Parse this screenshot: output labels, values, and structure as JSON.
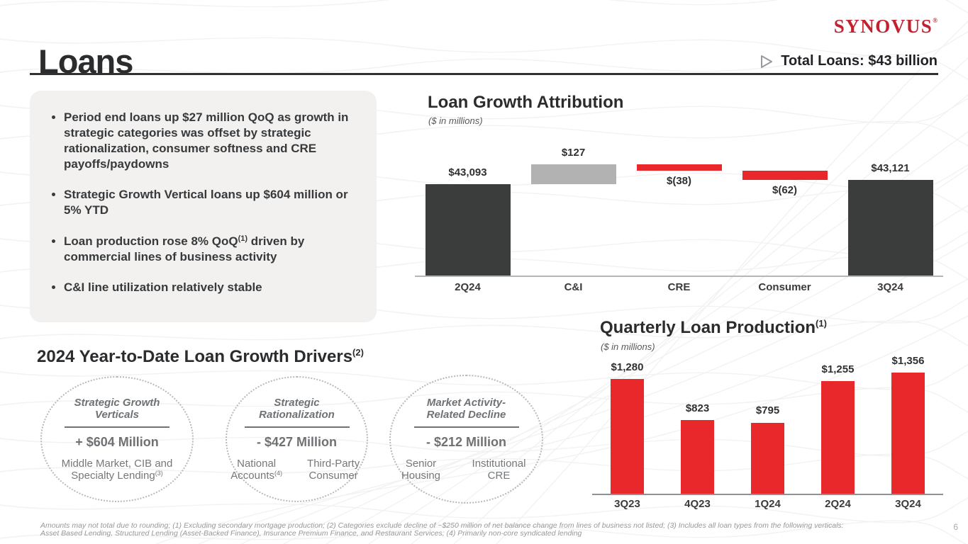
{
  "colors": {
    "accent_red": "#e8282a",
    "bar_dark": "#3b3d3c",
    "bar_gray": "#b1b2b1",
    "logo_red": "#c32130",
    "highlight_box_bg": "#f2f1f0"
  },
  "header": {
    "title": "Loans",
    "logo_text": "SYNOVUS",
    "logo_registered": "®",
    "total_loans": "Total Loans: $43 billion"
  },
  "highlights": {
    "bullets": [
      {
        "text": "Period end loans up $27 million QoQ as growth in strategic categories was offset by strategic rationalization, consumer softness and CRE payoffs/paydowns"
      },
      {
        "text": "Strategic Growth Vertical loans up $604 million or 5% YTD"
      },
      {
        "pre": "Loan production rose 8% QoQ",
        "sup": "(1)",
        "post": " driven by commercial lines of business activity"
      },
      {
        "text": "C&I line utilization relatively stable"
      }
    ]
  },
  "chart_data": [
    {
      "id": "loan_growth_attribution",
      "type": "waterfall",
      "title": "Loan Growth Attribution",
      "subtitle": "($ in millions)",
      "categories": [
        "2Q24",
        "C&I",
        "CRE",
        "Consumer",
        "3Q24"
      ],
      "values": [
        43093,
        127,
        -38,
        -62,
        43121
      ],
      "roles": [
        "total",
        "increase",
        "decrease",
        "decrease",
        "total"
      ],
      "labels": [
        "$43,093",
        "$127",
        "$(38)",
        "$(62)",
        "$43,121"
      ],
      "colors": {
        "total": "#3b3d3c",
        "increase": "#b1b2b1",
        "decrease": "#e8282a"
      },
      "axis_truncated": true,
      "grid": false,
      "legend": "none"
    },
    {
      "id": "quarterly_loan_production",
      "type": "bar",
      "title": "Quarterly Loan Production",
      "title_sup": "(1)",
      "subtitle": "($ in millions)",
      "categories": [
        "3Q23",
        "4Q23",
        "1Q24",
        "2Q24",
        "3Q24"
      ],
      "values": [
        1280,
        823,
        795,
        1255,
        1356
      ],
      "labels": [
        "$1,280",
        "$823",
        "$795",
        "$1,255",
        "$1,356"
      ],
      "bar_color": "#e8282a",
      "ylim": [
        0,
        1400
      ],
      "grid": false,
      "legend": "none"
    }
  ],
  "drivers": {
    "heading": "2024 Year-to-Date Loan Growth Drivers",
    "heading_sup": "(2)",
    "items": [
      {
        "title": "Strategic Growth Verticals",
        "amount": "+ $604 Million",
        "detail": "Middle Market, CIB and Specialty Lending",
        "detail_sup": "(3)"
      },
      {
        "title": "Strategic Rationalization",
        "amount": "- $427 Million",
        "columns": [
          {
            "text": "National Accounts",
            "sup": "(4)"
          },
          {
            "text": "Third-Party Consumer",
            "sup": ""
          }
        ]
      },
      {
        "title": "Market Activity-Related Decline",
        "amount": "- $212 Million",
        "columns": [
          {
            "text": "Senior Housing",
            "sup": ""
          },
          {
            "text": "Institutional CRE",
            "sup": ""
          }
        ]
      }
    ]
  },
  "footnote": {
    "line1": "Amounts may not total due to rounding; (1) Excluding secondary mortgage production; (2) Categories exclude decline of ~$250 million of net balance change from lines of business not listed; (3) Includes all loan types from the following verticals:",
    "line2": "Asset Based Lending, Structured Lending (Asset-Backed Finance), Insurance Premium Finance, and Restaurant Services; (4) Primarily non-core syndicated lending"
  },
  "page_number": "6"
}
